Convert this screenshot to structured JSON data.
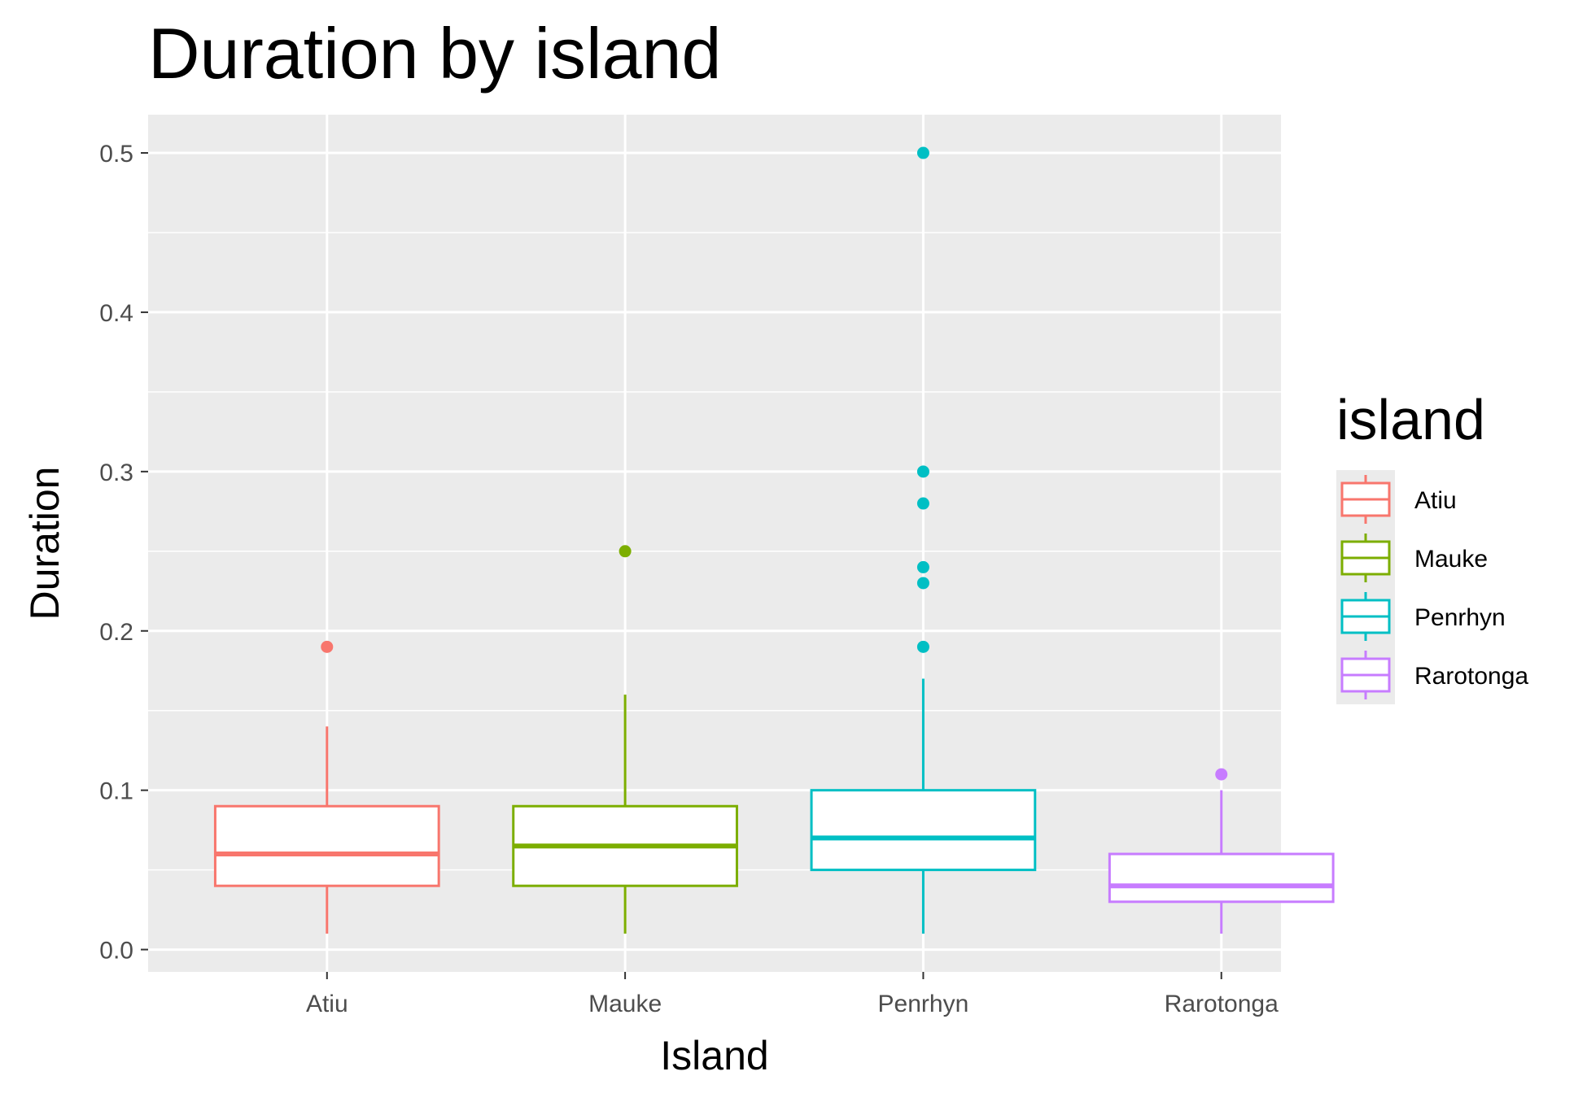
{
  "chart_data": {
    "type": "box",
    "title": "Duration by island",
    "xlabel": "Island",
    "ylabel": "Duration",
    "ylim": [
      -0.014,
      0.524
    ],
    "yticks": [
      "0.0",
      "0.1",
      "0.2",
      "0.3",
      "0.4",
      "0.5"
    ],
    "grid": true,
    "legend": {
      "title": "island",
      "position": "right"
    },
    "categories": [
      "Atiu",
      "Mauke",
      "Penrhyn",
      "Rarotonga"
    ],
    "series": [
      {
        "name": "Atiu",
        "color": "#F8766D",
        "min": 0.01,
        "q1": 0.04,
        "median": 0.06,
        "q3": 0.09,
        "max": 0.14,
        "outliers": [
          0.19
        ]
      },
      {
        "name": "Mauke",
        "color": "#7CAE00",
        "min": 0.01,
        "q1": 0.04,
        "median": 0.065,
        "q3": 0.09,
        "max": 0.16,
        "outliers": [
          0.25
        ]
      },
      {
        "name": "Penrhyn",
        "color": "#00BFC4",
        "min": 0.01,
        "q1": 0.05,
        "median": 0.07,
        "q3": 0.1,
        "max": 0.17,
        "outliers": [
          0.19,
          0.23,
          0.24,
          0.28,
          0.3,
          0.5
        ]
      },
      {
        "name": "Rarotonga",
        "color": "#C77CFF",
        "min": 0.01,
        "q1": 0.03,
        "median": 0.04,
        "q3": 0.06,
        "max": 0.1,
        "outliers": [
          0.11
        ]
      }
    ]
  }
}
